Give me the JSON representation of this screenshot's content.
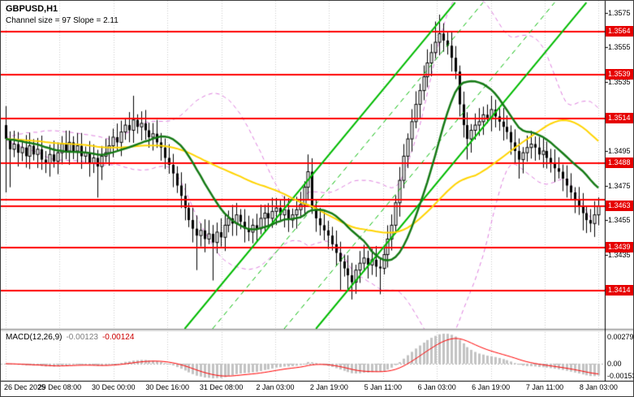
{
  "header": {
    "symbol": "GBPUSD,H1",
    "channel_info": "Channel size = 97 Slope = 2.11"
  },
  "macd": {
    "label": "MACD(12,26,9)",
    "value1": "-0.00123",
    "value2": "-0.00124",
    "axis_top": "0.00279",
    "axis_zero": "0.00",
    "axis_bottom": "-0.00153"
  },
  "price_axis": {
    "ticks": [
      {
        "label": "1.3575",
        "value": 1.3575
      },
      {
        "label": "1.3555",
        "value": 1.3555
      },
      {
        "label": "1.3535",
        "value": 1.3535
      },
      {
        "label": "1.3515",
        "value": 1.3515
      },
      {
        "label": "1.3495",
        "value": 1.3495
      },
      {
        "label": "1.3475",
        "value": 1.3475
      },
      {
        "label": "1.3455",
        "value": 1.3455
      },
      {
        "label": "1.3435",
        "value": 1.3435
      },
      {
        "label": "1.3415",
        "value": 1.3415
      }
    ]
  },
  "time_axis": {
    "labels": [
      "26 Dec 2025",
      "29 Dec 08:00",
      "30 Dec 00:00",
      "30 Dec 16:00",
      "31 Dec 08:00",
      "2 Jan 03:00",
      "2 Jan 19:00",
      "5 Jan 11:00",
      "6 Jan 03:00",
      "6 Jan 19:00",
      "7 Jan 11:00",
      "8 Jan 03:00"
    ]
  },
  "colors": {
    "background": "#ffffff",
    "grid": "#cdcdcd",
    "candle_up_fill": "#ffffff",
    "candle_down_fill": "#000000",
    "candle_stroke": "#000000",
    "level": "#ff0000",
    "channel": "#00bb00",
    "badge_bg": "#e60000",
    "badge_text": "#ffffff"
  },
  "chart_data": {
    "type": "candlestick",
    "title": "GBPUSD,H1",
    "symbol": "GBPUSD",
    "timeframe": "H1",
    "y_range": [
      1.3392,
      1.3582
    ],
    "open_first": 1.351,
    "closes": [
      1.3502,
      1.3496,
      1.3499,
      1.3494,
      1.3497,
      1.3492,
      1.3498,
      1.3493,
      1.3496,
      1.349,
      1.3488,
      1.3493,
      1.3489,
      1.3494,
      1.3499,
      1.3495,
      1.35,
      1.3495,
      1.3498,
      1.3492,
      1.3494,
      1.3488,
      1.3491,
      1.3486,
      1.3492,
      1.3494,
      1.3498,
      1.3503,
      1.35,
      1.3506,
      1.351,
      1.3507,
      1.3513,
      1.3509,
      1.3511,
      1.3507,
      1.3503,
      1.3505,
      1.35,
      1.3497,
      1.3491,
      1.3487,
      1.3482,
      1.3475,
      1.3469,
      1.3462,
      1.3455,
      1.345,
      1.3446,
      1.3449,
      1.3444,
      1.3447,
      1.3442,
      1.3448,
      1.3445,
      1.3452,
      1.3456,
      1.3453,
      1.3458,
      1.3454,
      1.345,
      1.3448,
      1.3452,
      1.345,
      1.3456,
      1.3459,
      1.3456,
      1.346,
      1.3462,
      1.3458,
      1.3461,
      1.3455,
      1.3458,
      1.3461,
      1.3464,
      1.3474,
      1.3483,
      1.3462,
      1.3456,
      1.3452,
      1.3449,
      1.3446,
      1.3441,
      1.3436,
      1.3431,
      1.3427,
      1.3423,
      1.3419,
      1.3426,
      1.343,
      1.3433,
      1.3429,
      1.3432,
      1.3428,
      1.3427,
      1.3435,
      1.3444,
      1.3452,
      1.3465,
      1.3478,
      1.3492,
      1.3502,
      1.3512,
      1.3522,
      1.353,
      1.3538,
      1.3546,
      1.3552,
      1.3558,
      1.3563,
      1.3559,
      1.3556,
      1.3549,
      1.3541,
      1.3522,
      1.351,
      1.3502,
      1.3507,
      1.351,
      1.3512,
      1.3516,
      1.3514,
      1.3519,
      1.3515,
      1.3512,
      1.3509,
      1.3506,
      1.35,
      1.3495,
      1.349,
      1.3494,
      1.3497,
      1.3499,
      1.3497,
      1.3493,
      1.3495,
      1.3491,
      1.3488,
      1.3485,
      1.3483,
      1.3479,
      1.3475,
      1.3471,
      1.3467,
      1.3463,
      1.3459,
      1.3455,
      1.3453,
      1.3458,
      1.3463
    ],
    "wick": {
      "base": 0.0003,
      "amp": 0.0005
    },
    "spikes": [
      {
        "i": 0,
        "h": 1.3521,
        "l": 1.3471
      },
      {
        "i": 1,
        "l": 1.3474
      },
      {
        "i": 23,
        "l": 1.3468
      },
      {
        "i": 32,
        "h": 1.3527
      },
      {
        "i": 48,
        "l": 1.3426
      },
      {
        "i": 52,
        "l": 1.342
      },
      {
        "i": 76,
        "h": 1.3493
      },
      {
        "i": 84,
        "l": 1.3414
      },
      {
        "i": 87,
        "l": 1.3409
      },
      {
        "i": 94,
        "l": 1.3412
      },
      {
        "i": 108,
        "h": 1.357
      },
      {
        "i": 109,
        "h": 1.3574
      },
      {
        "i": 116,
        "l": 1.349
      },
      {
        "i": 129,
        "l": 1.3479
      },
      {
        "i": 145,
        "l": 1.3449
      },
      {
        "i": 147,
        "l": 1.3448
      }
    ],
    "levels": [
      {
        "price": 1.3564,
        "badge": true
      },
      {
        "price": 1.3539,
        "badge": true
      },
      {
        "price": 1.3514,
        "badge": true
      },
      {
        "price": 1.3488,
        "badge": true
      },
      {
        "price": 1.3467,
        "badge": false
      },
      {
        "price": 1.3463,
        "badge": true
      },
      {
        "price": 1.3439,
        "badge": true
      },
      {
        "price": 1.3414,
        "badge": true
      }
    ],
    "channel": [
      {
        "i1": 45,
        "p1": 1.3392,
        "i2": 113,
        "p2": 1.3581,
        "style": "solid"
      },
      {
        "i1": 78,
        "p1": 1.3392,
        "i2": 146,
        "p2": 1.3581,
        "style": "solid"
      },
      {
        "i1": 52,
        "p1": 1.3392,
        "i2": 120,
        "p2": 1.3581,
        "style": "dashed"
      },
      {
        "i1": 70,
        "p1": 1.3392,
        "i2": 138,
        "p2": 1.3581,
        "style": "dashed"
      }
    ],
    "indicators": {
      "ma_fast": {
        "period": 16,
        "color": "#157a15"
      },
      "ma_slow": {
        "period": 42,
        "color": "#ffd400"
      },
      "bollinger": {
        "period": 28,
        "mult": 1.8,
        "color": "#df7fdf"
      },
      "macd": {
        "fast": 12,
        "slow": 26,
        "signal": 9,
        "hist_color": "#c3c3c3",
        "signal_color": "#ff0000"
      }
    }
  }
}
